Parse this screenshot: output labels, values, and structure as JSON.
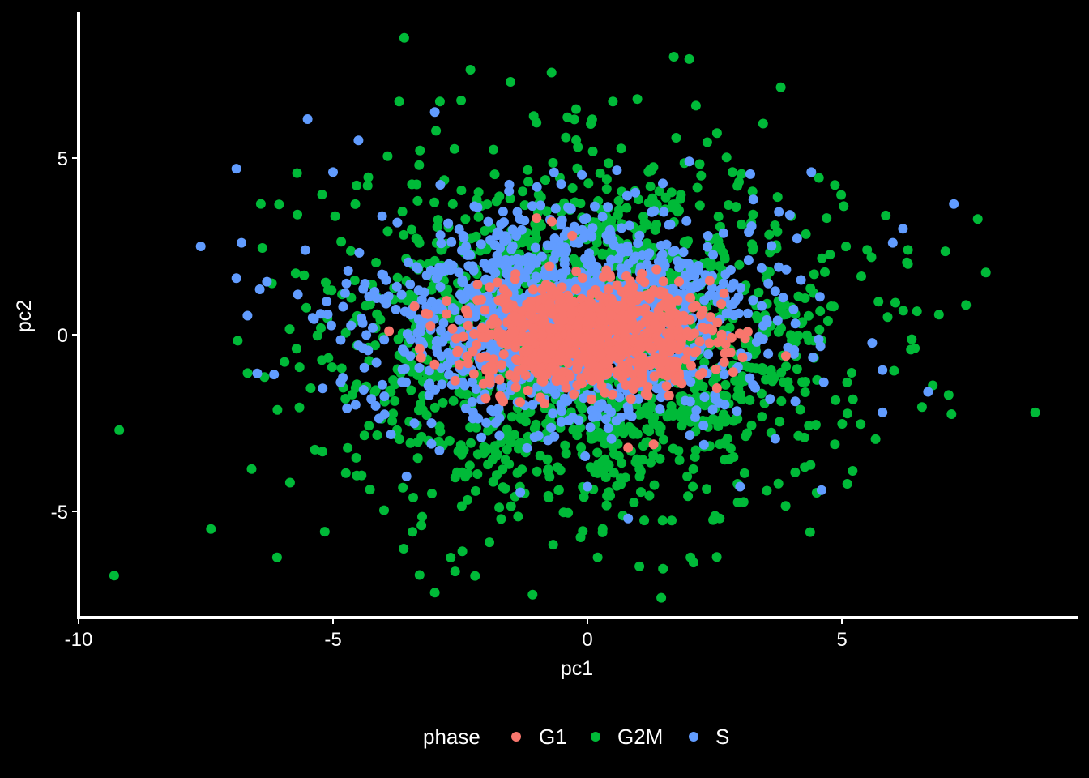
{
  "chart_data": {
    "type": "scatter",
    "xlabel": "pc1",
    "ylabel": "pc2",
    "xlim": [
      -10,
      9.6
    ],
    "ylim": [
      -8,
      9
    ],
    "x_ticks": [
      -10,
      -5,
      0,
      5
    ],
    "y_ticks": [
      -5,
      0,
      5
    ],
    "grid": false,
    "background": "#000000",
    "legend": {
      "title": "phase",
      "placement": "bottom"
    },
    "series": [
      {
        "name": "G1",
        "color": "#F8766D",
        "center": [
          0.1,
          0.0
        ],
        "spread": [
          1.15,
          0.7
        ],
        "count": 900,
        "points": [
          [
            -1.0,
            3.3
          ],
          [
            -0.7,
            3.2
          ],
          [
            -0.3,
            2.8
          ],
          [
            -2.0,
            -1.8
          ],
          [
            -1.7,
            -1.8
          ],
          [
            -2.6,
            -1.3
          ],
          [
            -3.9,
            0.1
          ],
          [
            -3.4,
            0.8
          ],
          [
            -3.3,
            -0.4
          ],
          [
            1.3,
            -3.1
          ],
          [
            0.8,
            -3.2
          ],
          [
            3.9,
            -0.6
          ],
          [
            3.1,
            -0.1
          ],
          [
            1.8,
            1.5
          ],
          [
            1.5,
            1.2
          ]
        ]
      },
      {
        "name": "G2M",
        "color": "#00BA38",
        "center": [
          0.1,
          -0.1
        ],
        "spread": [
          2.4,
          2.4
        ],
        "count": 1700,
        "points": [
          [
            -3.6,
            8.4
          ],
          [
            2.0,
            7.8
          ],
          [
            3.8,
            7.0
          ],
          [
            -2.3,
            7.5
          ],
          [
            -3.7,
            6.6
          ],
          [
            -2.9,
            6.6
          ],
          [
            0.5,
            6.6
          ],
          [
            -1.0,
            6.0
          ],
          [
            -9.2,
            -2.7
          ],
          [
            -7.4,
            -5.5
          ],
          [
            -6.1,
            -6.3
          ],
          [
            -3.0,
            -7.3
          ],
          [
            -3.3,
            -6.8
          ],
          [
            -2.6,
            -6.7
          ],
          [
            0.2,
            -6.3
          ],
          [
            8.8,
            -2.2
          ],
          [
            6.3,
            2.4
          ],
          [
            6.3,
            2.0
          ],
          [
            5.9,
            0.5
          ],
          [
            4.7,
            3.3
          ],
          [
            -6.6,
            -3.8
          ],
          [
            -5.7,
            3.4
          ],
          [
            -4.8,
            -1.5
          ],
          [
            2.6,
            -5.2
          ]
        ]
      },
      {
        "name": "S",
        "color": "#619CFF",
        "center": [
          -0.4,
          0.4
        ],
        "spread": [
          1.9,
          1.5
        ],
        "count": 1300,
        "points": [
          [
            -5.5,
            6.1
          ],
          [
            -6.9,
            4.7
          ],
          [
            -5.0,
            4.6
          ],
          [
            -4.5,
            5.5
          ],
          [
            -3.0,
            6.3
          ],
          [
            -7.6,
            2.5
          ],
          [
            -6.8,
            2.6
          ],
          [
            -6.9,
            1.6
          ],
          [
            -6.3,
            1.5
          ],
          [
            7.2,
            3.7
          ],
          [
            6.2,
            3.0
          ],
          [
            6.0,
            2.6
          ],
          [
            4.4,
            4.6
          ],
          [
            5.8,
            -1.0
          ],
          [
            5.8,
            -2.2
          ],
          [
            4.6,
            -4.4
          ],
          [
            0.8,
            -5.2
          ],
          [
            0.0,
            -4.3
          ],
          [
            3.0,
            -4.3
          ],
          [
            -4.5,
            -0.3
          ]
        ]
      }
    ]
  }
}
